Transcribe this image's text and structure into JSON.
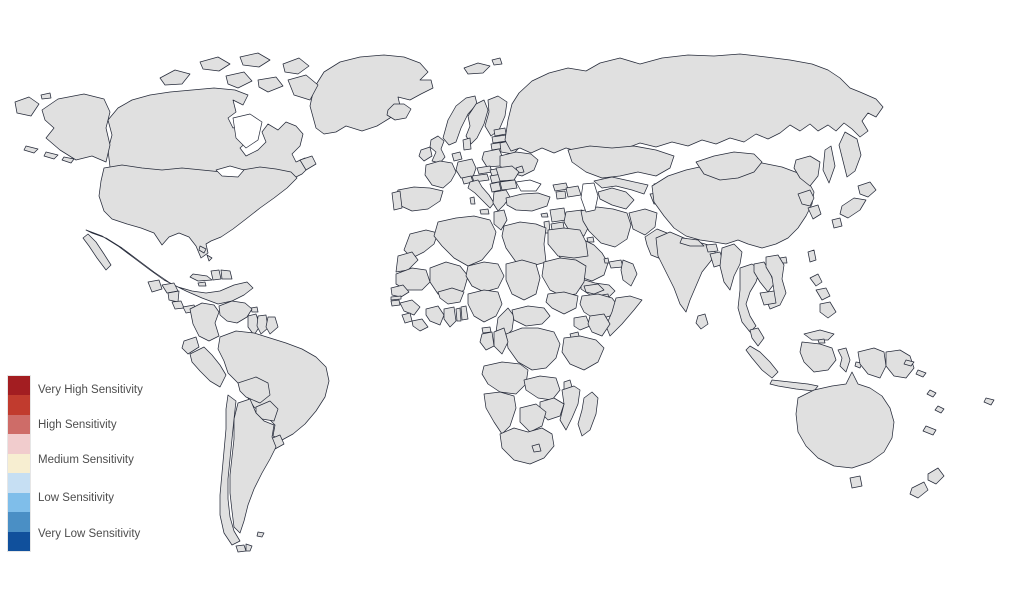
{
  "legend": {
    "items": [
      {
        "label": "Very High Sensitivity",
        "color": "#A31D21"
      },
      {
        "label": "High Sensitivity",
        "color": "#CE6C68"
      },
      {
        "label": "Medium Sensitivity",
        "color": "#F7EED1"
      },
      {
        "label": "Low Sensitivity",
        "color": "#7FBEEA"
      },
      {
        "label": "Very Low Sensitivity",
        "color": "#10509C"
      }
    ],
    "scale_steps": [
      "#A31D21",
      "#C13B2E",
      "#CE6C68",
      "#F1CCCD",
      "#F7EED1",
      "#C6DFF3",
      "#7FBEEA",
      "#4A8FC5",
      "#10509C"
    ],
    "text_color": "#4d4d4d"
  },
  "map": {
    "type": "choropleth-world-map",
    "background": "#ffffff",
    "border_color": "#262b3a",
    "levels": {
      "s1": "#A31D21",
      "s2": "#C13B2E",
      "s3": "#CE6C68",
      "s4": "#F1CCCD",
      "s5": "#F7EED1",
      "s6": "#C6DFF3",
      "s7": "#7FBEEA",
      "s8": "#4A8FC5",
      "s9": "#10509C"
    },
    "countries": [
      {
        "id": "greenland",
        "name": "Greenland",
        "level": "s5"
      },
      {
        "id": "iceland",
        "name": "Iceland",
        "level": "s9"
      },
      {
        "id": "canada",
        "name": "Canada",
        "level": "s7"
      },
      {
        "id": "usa",
        "name": "United States",
        "level": "s6"
      },
      {
        "id": "mexico",
        "name": "Mexico",
        "level": "s4"
      },
      {
        "id": "guatemala",
        "name": "Guatemala",
        "level": "s5"
      },
      {
        "id": "honduras",
        "name": "Honduras",
        "level": "s2"
      },
      {
        "id": "nicaragua",
        "name": "Nicaragua",
        "level": "s6"
      },
      {
        "id": "costa-rica",
        "name": "Costa Rica",
        "level": "s7"
      },
      {
        "id": "panama",
        "name": "Panama",
        "level": "s8"
      },
      {
        "id": "cuba",
        "name": "Cuba",
        "level": "s4"
      },
      {
        "id": "jamaica",
        "name": "Jamaica",
        "level": "s4"
      },
      {
        "id": "haiti",
        "name": "Haiti",
        "level": "s1"
      },
      {
        "id": "dominican-republic",
        "name": "Dominican Republic",
        "level": "s8"
      },
      {
        "id": "bahamas",
        "name": "Bahamas",
        "level": "s9"
      },
      {
        "id": "trinidad",
        "name": "Trinidad and Tobago",
        "level": "s7"
      },
      {
        "id": "colombia",
        "name": "Colombia",
        "level": "s1"
      },
      {
        "id": "venezuela",
        "name": "Venezuela",
        "level": "s1"
      },
      {
        "id": "guyana",
        "name": "Guyana",
        "level": "s5"
      },
      {
        "id": "suriname",
        "name": "Suriname",
        "level": "s9"
      },
      {
        "id": "french-guiana",
        "name": "French Guiana",
        "level": "s7"
      },
      {
        "id": "ecuador",
        "name": "Ecuador",
        "level": "s6"
      },
      {
        "id": "peru",
        "name": "Peru",
        "level": "s4"
      },
      {
        "id": "brazil",
        "name": "Brazil",
        "level": "s6"
      },
      {
        "id": "bolivia",
        "name": "Bolivia",
        "level": "s7"
      },
      {
        "id": "paraguay",
        "name": "Paraguay",
        "level": "s8"
      },
      {
        "id": "uruguay",
        "name": "Uruguay",
        "level": "s8"
      },
      {
        "id": "argentina",
        "name": "Argentina",
        "level": "s7"
      },
      {
        "id": "chile",
        "name": "Chile",
        "level": "s4"
      },
      {
        "id": "falklands",
        "name": "Falkland Islands",
        "level": "s7"
      },
      {
        "id": "uk",
        "name": "United Kingdom",
        "level": "s6"
      },
      {
        "id": "ireland",
        "name": "Ireland",
        "level": "s6"
      },
      {
        "id": "portugal",
        "name": "Portugal",
        "level": "s5"
      },
      {
        "id": "spain",
        "name": "Spain",
        "level": "s5"
      },
      {
        "id": "france",
        "name": "France",
        "level": "s7"
      },
      {
        "id": "netherlands",
        "name": "Netherlands / Belgium",
        "level": "s6"
      },
      {
        "id": "germany",
        "name": "Germany",
        "level": "s6"
      },
      {
        "id": "denmark",
        "name": "Denmark",
        "level": "s5"
      },
      {
        "id": "norway",
        "name": "Norway",
        "level": "s6"
      },
      {
        "id": "sweden",
        "name": "Sweden",
        "level": "s6"
      },
      {
        "id": "finland",
        "name": "Finland",
        "level": "s6"
      },
      {
        "id": "svalbard",
        "name": "Svalbard",
        "level": "s6"
      },
      {
        "id": "estonia",
        "name": "Estonia",
        "level": "s7"
      },
      {
        "id": "latvia",
        "name": "Latvia",
        "level": "s3"
      },
      {
        "id": "lithuania",
        "name": "Lithuania",
        "level": "s7"
      },
      {
        "id": "poland",
        "name": "Poland",
        "level": "s4"
      },
      {
        "id": "czechia",
        "name": "Czechia",
        "level": "s7"
      },
      {
        "id": "slovakia",
        "name": "Slovakia",
        "level": "s7"
      },
      {
        "id": "austria",
        "name": "Austria",
        "level": "s8"
      },
      {
        "id": "switzerland",
        "name": "Switzerland",
        "level": "s8"
      },
      {
        "id": "italy",
        "name": "Italy",
        "level": "s7"
      },
      {
        "id": "hungary",
        "name": "Hungary",
        "level": "s7"
      },
      {
        "id": "romania",
        "name": "Romania",
        "level": "s8"
      },
      {
        "id": "bulgaria",
        "name": "Bulgaria",
        "level": "s7"
      },
      {
        "id": "serbia",
        "name": "Serbia",
        "level": "s7"
      },
      {
        "id": "greece",
        "name": "Greece",
        "level": "s8"
      },
      {
        "id": "moldova",
        "name": "Moldova",
        "level": "s3"
      },
      {
        "id": "ukraine",
        "name": "Ukraine",
        "level": "s1"
      },
      {
        "id": "belarus",
        "name": "Belarus",
        "level": "s1"
      },
      {
        "id": "russia",
        "name": "Russia",
        "level": "s1"
      },
      {
        "id": "turkey",
        "name": "Turkey",
        "level": "s1"
      },
      {
        "id": "cyprus",
        "name": "Cyprus",
        "level": "s5"
      },
      {
        "id": "georgia",
        "name": "Georgia",
        "level": "s3"
      },
      {
        "id": "armenia",
        "name": "Armenia",
        "level": "s2"
      },
      {
        "id": "azerbaijan",
        "name": "Azerbaijan",
        "level": "s1"
      },
      {
        "id": "syria",
        "name": "Syria",
        "level": "s1"
      },
      {
        "id": "israel",
        "name": "Israel",
        "level": "s7"
      },
      {
        "id": "jordan",
        "name": "Jordan",
        "level": "s5"
      },
      {
        "id": "iraq",
        "name": "Iraq",
        "level": "s1"
      },
      {
        "id": "kuwait",
        "name": "Kuwait",
        "level": "s6"
      },
      {
        "id": "saudi-arabia",
        "name": "Saudi Arabia",
        "level": "s5"
      },
      {
        "id": "qatar",
        "name": "Qatar",
        "level": "s6"
      },
      {
        "id": "uae",
        "name": "United Arab Emirates",
        "level": "s6"
      },
      {
        "id": "oman",
        "name": "Oman",
        "level": "s6"
      },
      {
        "id": "yemen",
        "name": "Yemen",
        "level": "s1"
      },
      {
        "id": "iran",
        "name": "Iran",
        "level": "s1"
      },
      {
        "id": "afghanistan",
        "name": "Afghanistan",
        "level": "s1"
      },
      {
        "id": "pakistan",
        "name": "Pakistan",
        "level": "s4"
      },
      {
        "id": "turkmenistan",
        "name": "Turkmenistan",
        "level": "s9"
      },
      {
        "id": "uzbekistan",
        "name": "Uzbekistan",
        "level": "s8"
      },
      {
        "id": "kazakhstan",
        "name": "Kazakhstan",
        "level": "s6"
      },
      {
        "id": "kyrgyzstan",
        "name": "Kyrgyzstan",
        "level": "s6"
      },
      {
        "id": "tajikistan",
        "name": "Tajikistan",
        "level": "s4"
      },
      {
        "id": "india",
        "name": "India",
        "level": "s3"
      },
      {
        "id": "nepal",
        "name": "Nepal",
        "level": "s8"
      },
      {
        "id": "bhutan",
        "name": "Bhutan",
        "level": "s9"
      },
      {
        "id": "bangladesh",
        "name": "Bangladesh",
        "level": "s3"
      },
      {
        "id": "sri-lanka",
        "name": "Sri Lanka",
        "level": "s8"
      },
      {
        "id": "myanmar",
        "name": "Myanmar",
        "level": "s1"
      },
      {
        "id": "thailand",
        "name": "Thailand",
        "level": "s5"
      },
      {
        "id": "laos",
        "name": "Laos",
        "level": "s9"
      },
      {
        "id": "cambodia",
        "name": "Cambodia",
        "level": "s7"
      },
      {
        "id": "vietnam",
        "name": "Vietnam",
        "level": "s1"
      },
      {
        "id": "malaysia",
        "name": "Malaysia",
        "level": "s4"
      },
      {
        "id": "brunei",
        "name": "Brunei",
        "level": "s7"
      },
      {
        "id": "indonesia",
        "name": "Indonesia",
        "level": "s4"
      },
      {
        "id": "timor-leste",
        "name": "Timor-Leste",
        "level": "s3"
      },
      {
        "id": "philippines",
        "name": "Philippines",
        "level": "s2"
      },
      {
        "id": "papua-new-guinea",
        "name": "Papua New Guinea",
        "level": "s8"
      },
      {
        "id": "china",
        "name": "China",
        "level": "s5"
      },
      {
        "id": "mongolia",
        "name": "Mongolia",
        "level": "s7"
      },
      {
        "id": "north-korea",
        "name": "North Korea",
        "level": "s1"
      },
      {
        "id": "south-korea",
        "name": "South Korea",
        "level": "s4"
      },
      {
        "id": "japan",
        "name": "Japan",
        "level": "s5"
      },
      {
        "id": "taiwan",
        "name": "Taiwan",
        "level": "s4"
      },
      {
        "id": "australia",
        "name": "Australia",
        "level": "s8"
      },
      {
        "id": "new-zealand",
        "name": "New Zealand",
        "level": "s8"
      },
      {
        "id": "solomon-islands",
        "name": "Solomon Islands",
        "level": "s9"
      },
      {
        "id": "vanuatu",
        "name": "Vanuatu",
        "level": "s9"
      },
      {
        "id": "fiji",
        "name": "Fiji",
        "level": "s9"
      },
      {
        "id": "new-caledonia",
        "name": "New Caledonia",
        "level": "s9"
      },
      {
        "id": "morocco",
        "name": "Morocco",
        "level": "s3"
      },
      {
        "id": "western-sahara",
        "name": "Western Sahara",
        "level": "s5"
      },
      {
        "id": "algeria",
        "name": "Algeria",
        "level": "s3"
      },
      {
        "id": "tunisia",
        "name": "Tunisia",
        "level": "s8"
      },
      {
        "id": "libya",
        "name": "Libya",
        "level": "s1"
      },
      {
        "id": "egypt",
        "name": "Egypt",
        "level": "s5"
      },
      {
        "id": "mauritania",
        "name": "Mauritania",
        "level": "s7"
      },
      {
        "id": "mali",
        "name": "Mali",
        "level": "s5"
      },
      {
        "id": "niger",
        "name": "Niger",
        "level": "s6"
      },
      {
        "id": "chad",
        "name": "Chad",
        "level": "s5"
      },
      {
        "id": "sudan",
        "name": "Sudan",
        "level": "s1"
      },
      {
        "id": "eritrea",
        "name": "Eritrea",
        "level": "s1"
      },
      {
        "id": "djibouti",
        "name": "Djibouti",
        "level": "s3"
      },
      {
        "id": "ethiopia",
        "name": "Ethiopia",
        "level": "s1"
      },
      {
        "id": "somalia",
        "name": "Somalia",
        "level": "s1"
      },
      {
        "id": "senegal",
        "name": "Senegal",
        "level": "s7"
      },
      {
        "id": "gambia",
        "name": "Gambia",
        "level": "s3"
      },
      {
        "id": "guinea-bissau",
        "name": "Guinea-Bissau",
        "level": "s5"
      },
      {
        "id": "guinea",
        "name": "Guinea",
        "level": "s7"
      },
      {
        "id": "sierra-leone",
        "name": "Sierra Leone",
        "level": "s9"
      },
      {
        "id": "liberia",
        "name": "Liberia",
        "level": "s5"
      },
      {
        "id": "ivory-coast",
        "name": "Ivory Coast",
        "level": "s5"
      },
      {
        "id": "ghana",
        "name": "Ghana",
        "level": "s8"
      },
      {
        "id": "togo",
        "name": "Togo",
        "level": "s5"
      },
      {
        "id": "benin",
        "name": "Benin",
        "level": "s8"
      },
      {
        "id": "burkina-faso",
        "name": "Burkina Faso",
        "level": "s3"
      },
      {
        "id": "nigeria",
        "name": "Nigeria",
        "level": "s1"
      },
      {
        "id": "cameroon",
        "name": "Cameroon",
        "level": "s1"
      },
      {
        "id": "central-african-republic",
        "name": "Central African Republic",
        "level": "s1"
      },
      {
        "id": "south-sudan",
        "name": "South Sudan",
        "level": "s4"
      },
      {
        "id": "uganda",
        "name": "Uganda",
        "level": "s3"
      },
      {
        "id": "kenya",
        "name": "Kenya",
        "level": "s3"
      },
      {
        "id": "rwanda-burundi",
        "name": "Rwanda / Burundi",
        "level": "s3"
      },
      {
        "id": "dr-congo",
        "name": "DR Congo",
        "level": "s1"
      },
      {
        "id": "congo",
        "name": "Republic of the Congo",
        "level": "s9"
      },
      {
        "id": "gabon",
        "name": "Gabon",
        "level": "s8"
      },
      {
        "id": "equatorial-guinea",
        "name": "Equatorial Guinea",
        "level": "s9"
      },
      {
        "id": "angola",
        "name": "Angola",
        "level": "s6"
      },
      {
        "id": "zambia",
        "name": "Zambia",
        "level": "s3"
      },
      {
        "id": "malawi",
        "name": "Malawi",
        "level": "s4"
      },
      {
        "id": "tanzania",
        "name": "Tanzania",
        "level": "s5"
      },
      {
        "id": "mozambique",
        "name": "Mozambique",
        "level": "s6"
      },
      {
        "id": "zimbabwe",
        "name": "Zimbabwe",
        "level": "s1"
      },
      {
        "id": "botswana",
        "name": "Botswana",
        "level": "s8"
      },
      {
        "id": "namibia",
        "name": "Namibia",
        "level": "s6"
      },
      {
        "id": "south-africa",
        "name": "South Africa",
        "level": "s8"
      },
      {
        "id": "lesotho",
        "name": "Lesotho",
        "level": "s6"
      },
      {
        "id": "madagascar",
        "name": "Madagascar",
        "level": "s6"
      }
    ]
  }
}
